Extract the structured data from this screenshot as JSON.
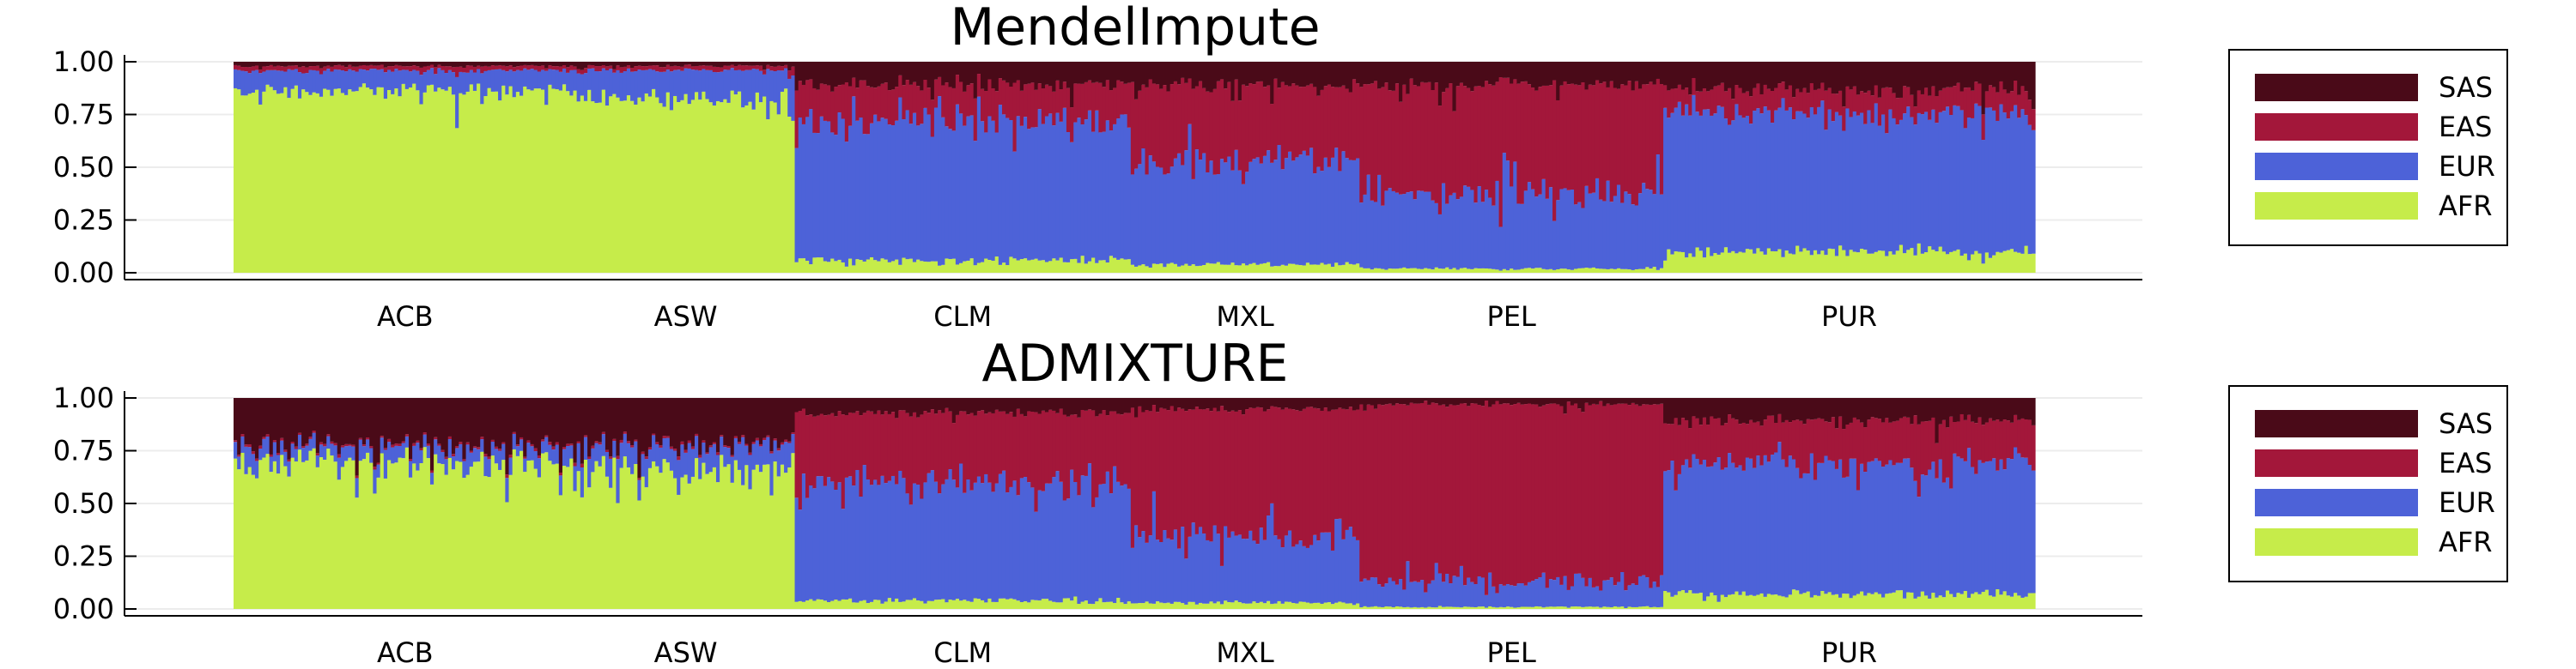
{
  "chart_data": [
    {
      "type": "bar",
      "stacked": true,
      "title": "MendelImpute",
      "ylim": [
        0,
        1
      ],
      "yticks": [
        "0.00",
        "0.25",
        "0.50",
        "0.75",
        "1.00"
      ],
      "grid": true,
      "legend_position": "outside-right",
      "populations": [
        "ACB",
        "ASW",
        "CLM",
        "MXL",
        "PEL",
        "PUR"
      ],
      "segments": [
        {
          "population": "ACB",
          "samples": 96,
          "AFR": 0.87,
          "EUR": 0.09,
          "EAS": 0.02,
          "SAS": 0.02
        },
        {
          "population": "ASW",
          "samples": 61,
          "AFR": 0.83,
          "EUR": 0.13,
          "EAS": 0.02,
          "SAS": 0.02
        },
        {
          "population": "CLM",
          "samples": 94,
          "AFR": 0.06,
          "EUR": 0.66,
          "EAS": 0.17,
          "SAS": 0.11
        },
        {
          "population": "MXL",
          "samples": 64,
          "AFR": 0.04,
          "EUR": 0.49,
          "EAS": 0.36,
          "SAS": 0.11
        },
        {
          "population": "PEL",
          "samples": 85,
          "AFR": 0.02,
          "EUR": 0.36,
          "EAS": 0.51,
          "SAS": 0.11
        },
        {
          "population": "PUR",
          "samples": 104,
          "AFR": 0.1,
          "EUR": 0.66,
          "EAS": 0.11,
          "SAS": 0.13
        }
      ],
      "series": [
        {
          "name": "SAS",
          "color": "#4a0a18"
        },
        {
          "name": "EAS",
          "color": "#a3173a"
        },
        {
          "name": "EUR",
          "color": "#4d62d8"
        },
        {
          "name": "AFR",
          "color": "#c6ec4a"
        }
      ]
    },
    {
      "type": "bar",
      "stacked": true,
      "title": "ADMIXTURE",
      "ylim": [
        0,
        1
      ],
      "yticks": [
        "0.00",
        "0.25",
        "0.50",
        "0.75",
        "1.00"
      ],
      "grid": true,
      "legend_position": "outside-right",
      "populations": [
        "ACB",
        "ASW",
        "CLM",
        "MXL",
        "PEL",
        "PUR"
      ],
      "segments": [
        {
          "population": "ACB",
          "samples": 96,
          "AFR": 0.7,
          "EUR": 0.07,
          "EAS": 0.01,
          "SAS": 0.22
        },
        {
          "population": "ASW",
          "samples": 61,
          "AFR": 0.66,
          "EUR": 0.11,
          "EAS": 0.01,
          "SAS": 0.22
        },
        {
          "population": "CLM",
          "samples": 94,
          "AFR": 0.04,
          "EUR": 0.56,
          "EAS": 0.33,
          "SAS": 0.07
        },
        {
          "population": "MXL",
          "samples": 64,
          "AFR": 0.03,
          "EUR": 0.32,
          "EAS": 0.6,
          "SAS": 0.05
        },
        {
          "population": "PEL",
          "samples": 85,
          "AFR": 0.01,
          "EUR": 0.12,
          "EAS": 0.84,
          "SAS": 0.03
        },
        {
          "population": "PUR",
          "samples": 104,
          "AFR": 0.07,
          "EUR": 0.62,
          "EAS": 0.2,
          "SAS": 0.11
        }
      ],
      "series": [
        {
          "name": "SAS",
          "color": "#4a0a18"
        },
        {
          "name": "EAS",
          "color": "#a3173a"
        },
        {
          "name": "EUR",
          "color": "#4d62d8"
        },
        {
          "name": "AFR",
          "color": "#c6ec4a"
        }
      ]
    }
  ]
}
